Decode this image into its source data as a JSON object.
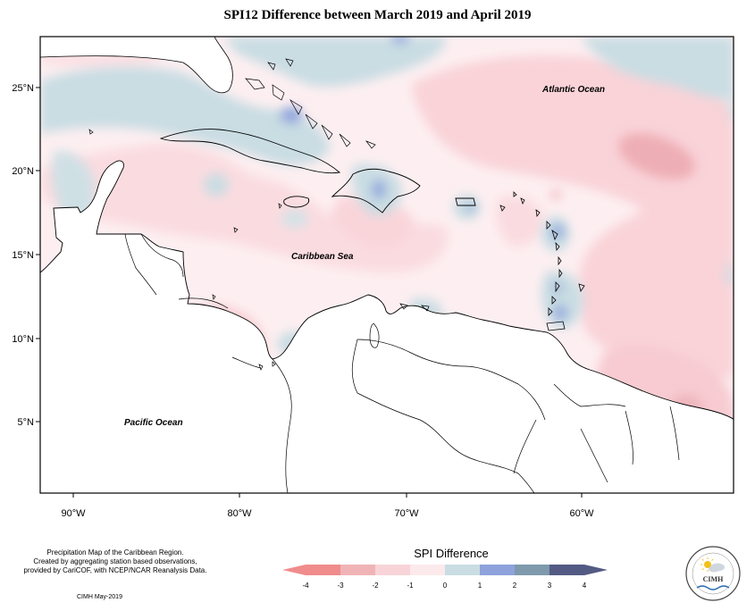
{
  "title": "SPI12 Difference between March 2019 and April 2019",
  "axes": {
    "lat_ticks": [
      "25°N",
      "20°N",
      "15°N",
      "10°N",
      "5°N"
    ],
    "lon_ticks": [
      "90°W",
      "80°W",
      "70°W",
      "60°W"
    ]
  },
  "places": {
    "atlantic": "Atlantic Ocean",
    "caribbean": "Caribbean Sea",
    "pacific": "Pacific Ocean"
  },
  "legend": {
    "title": "SPI Difference",
    "ticks": [
      "-4",
      "-3",
      "-2",
      "-1",
      "0",
      "1",
      "2",
      "3",
      "4"
    ],
    "colors": [
      "#f08c8c",
      "#f0b4b6",
      "#f8d4d8",
      "#fce9ec",
      "#c9dde3",
      "#8ea2dc",
      "#7f9aac",
      "#535a84"
    ]
  },
  "credit": {
    "line1": "Precipitation Map of the Caribbean Region.",
    "line2": "Created by aggregating station based observations,",
    "line3": "provided by CariCOF, with NCEP/NCAR Reanalysis Data.",
    "date": "CIMH May-2019"
  },
  "logo": {
    "text": "CIMH"
  }
}
